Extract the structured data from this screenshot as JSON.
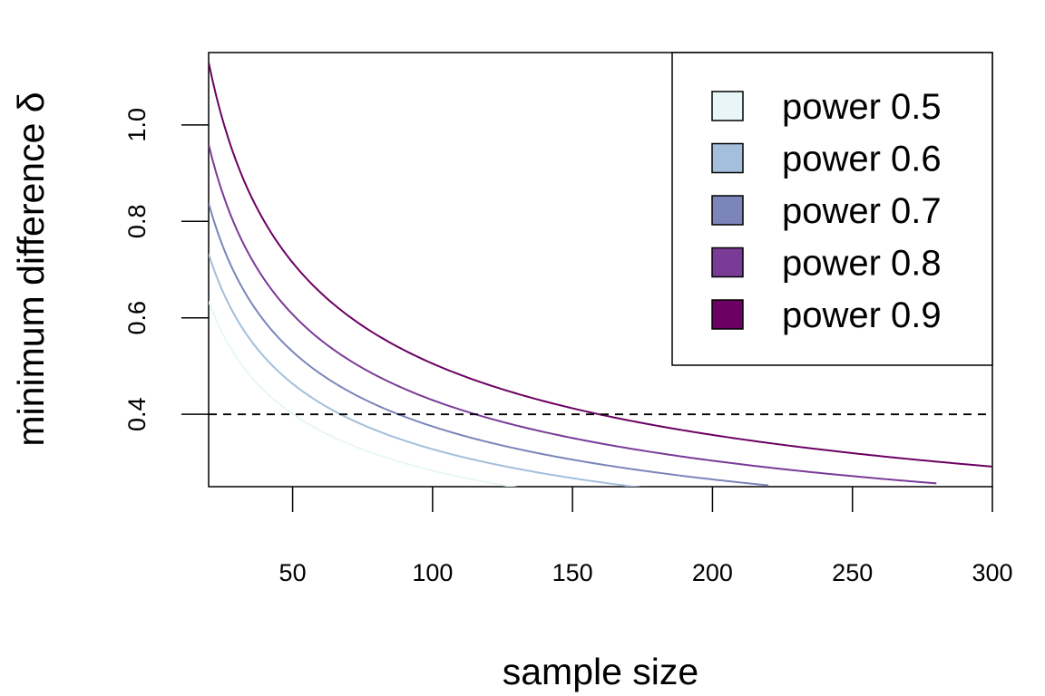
{
  "chart_data": {
    "type": "line",
    "xlabel": "sample size",
    "ylabel": "minimum difference δ",
    "xlim": [
      20,
      300
    ],
    "ylim": [
      0.25,
      1.15
    ],
    "xticks": [
      50,
      100,
      150,
      200,
      250,
      300
    ],
    "yticks": [
      0.4,
      0.6,
      0.8,
      1.0
    ],
    "xtick_labels": [
      "50",
      "100",
      "150",
      "200",
      "250",
      "300"
    ],
    "ytick_labels": [
      "0.4",
      "0.6",
      "0.8",
      "1.0"
    ],
    "reference_line": {
      "y": 0.4,
      "style": "dashed"
    },
    "grid": false,
    "legend_position": "top-right",
    "series": [
      {
        "name": "power 0.5",
        "color": "#E9F6F8",
        "x": [
          20,
          30,
          40,
          50,
          60,
          70,
          80,
          100,
          120,
          150
        ],
        "y": [
          0.634,
          0.518,
          0.448,
          0.401,
          0.366,
          0.339,
          0.317,
          0.283,
          0.259,
          0.231
        ]
      },
      {
        "name": "power 0.6",
        "color": "#A4BFDB",
        "x": [
          20,
          30,
          40,
          50,
          60,
          70,
          80,
          100,
          120,
          150,
          180,
          200
        ],
        "y": [
          0.733,
          0.598,
          0.518,
          0.463,
          0.423,
          0.392,
          0.366,
          0.328,
          0.299,
          0.268,
          0.244,
          0.232
        ]
      },
      {
        "name": "power 0.7",
        "color": "#7B85BA",
        "x": [
          20,
          30,
          40,
          50,
          60,
          70,
          80,
          100,
          120,
          150,
          180,
          200,
          220
        ],
        "y": [
          0.838,
          0.684,
          0.592,
          0.53,
          0.484,
          0.448,
          0.419,
          0.375,
          0.342,
          0.306,
          0.279,
          0.265,
          0.253
        ]
      },
      {
        "name": "power 0.8",
        "color": "#7A3B97",
        "x": [
          20,
          30,
          40,
          50,
          60,
          70,
          80,
          100,
          120,
          150,
          180,
          200,
          250,
          280
        ],
        "y": [
          0.96,
          0.784,
          0.679,
          0.607,
          0.554,
          0.513,
          0.48,
          0.429,
          0.392,
          0.351,
          0.32,
          0.304,
          0.272,
          0.257
        ]
      },
      {
        "name": "power 0.9",
        "color": "#6C0063",
        "x": [
          20,
          30,
          40,
          50,
          60,
          70,
          80,
          100,
          120,
          150,
          180,
          200,
          250,
          300
        ],
        "y": [
          1.13,
          0.922,
          0.799,
          0.714,
          0.652,
          0.604,
          0.565,
          0.505,
          0.461,
          0.413,
          0.377,
          0.357,
          0.32,
          0.291
        ]
      }
    ]
  }
}
